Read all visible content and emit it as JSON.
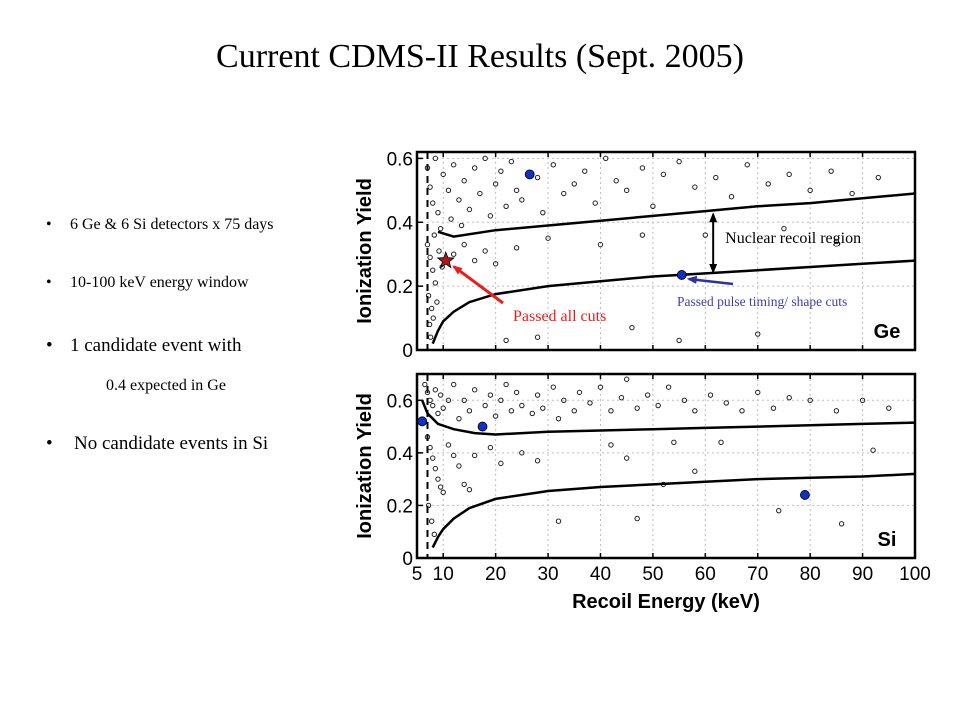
{
  "slide": {
    "title": "Current CDMS-II Results (Sept. 2005)",
    "bullets": [
      {
        "bullet": "•",
        "text": "6 Ge & 6 Si detectors x 75 days",
        "size": "small"
      },
      {
        "bullet": "•",
        "text": "10-100 keV energy window",
        "size": "small"
      },
      {
        "bullet": "•",
        "text": "1 candidate event with",
        "size": "large"
      },
      {
        "bullet": "•",
        "text": "No candidate events in Si",
        "size": "large"
      }
    ],
    "sub_bullet": "0.4 expected in Ge"
  },
  "chart_data": [
    {
      "type": "scatter",
      "panel": "Ge",
      "xlabel": "",
      "ylabel": "Ionization Yield",
      "xlim": [
        5,
        100
      ],
      "ylim": [
        0,
        0.62
      ],
      "yticks": [
        "0",
        "0.2",
        "0.4",
        "0.6"
      ],
      "grid": true,
      "panel_label": "Ge",
      "threshold_x": 7,
      "band_upper": [
        [
          9,
          0.37
        ],
        [
          12,
          0.355
        ],
        [
          20,
          0.375
        ],
        [
          30,
          0.39
        ],
        [
          40,
          0.405
        ],
        [
          50,
          0.42
        ],
        [
          60,
          0.435
        ],
        [
          70,
          0.45
        ],
        [
          80,
          0.46
        ],
        [
          90,
          0.475
        ],
        [
          100,
          0.49
        ]
      ],
      "band_lower": [
        [
          8,
          0.02
        ],
        [
          9,
          0.06
        ],
        [
          10,
          0.09
        ],
        [
          12,
          0.12
        ],
        [
          15,
          0.15
        ],
        [
          20,
          0.175
        ],
        [
          30,
          0.2
        ],
        [
          40,
          0.215
        ],
        [
          50,
          0.23
        ],
        [
          60,
          0.24
        ],
        [
          70,
          0.25
        ],
        [
          80,
          0.26
        ],
        [
          90,
          0.27
        ],
        [
          100,
          0.28
        ]
      ],
      "highlight_points": [
        [
          26.5,
          0.55
        ],
        [
          55.5,
          0.235
        ]
      ],
      "candidate_star": [
        10.5,
        0.28
      ],
      "points": [
        [
          7,
          0.57
        ],
        [
          7.5,
          0.51
        ],
        [
          8,
          0.46
        ],
        [
          8.5,
          0.6
        ],
        [
          9,
          0.43
        ],
        [
          9.5,
          0.38
        ],
        [
          10,
          0.55
        ],
        [
          11,
          0.5
        ],
        [
          11.5,
          0.41
        ],
        [
          12,
          0.58
        ],
        [
          13,
          0.47
        ],
        [
          13.5,
          0.39
        ],
        [
          14,
          0.53
        ],
        [
          15,
          0.44
        ],
        [
          16,
          0.57
        ],
        [
          17,
          0.49
        ],
        [
          18,
          0.6
        ],
        [
          19,
          0.42
        ],
        [
          20,
          0.52
        ],
        [
          21,
          0.56
        ],
        [
          22,
          0.45
        ],
        [
          23,
          0.59
        ],
        [
          24,
          0.5
        ],
        [
          25,
          0.47
        ],
        [
          28,
          0.54
        ],
        [
          29,
          0.43
        ],
        [
          31,
          0.58
        ],
        [
          33,
          0.49
        ],
        [
          35,
          0.52
        ],
        [
          37,
          0.56
        ],
        [
          39,
          0.46
        ],
        [
          41,
          0.6
        ],
        [
          43,
          0.53
        ],
        [
          45,
          0.5
        ],
        [
          48,
          0.57
        ],
        [
          50,
          0.45
        ],
        [
          52,
          0.55
        ],
        [
          55,
          0.59
        ],
        [
          58,
          0.51
        ],
        [
          62,
          0.54
        ],
        [
          65,
          0.48
        ],
        [
          68,
          0.58
        ],
        [
          72,
          0.52
        ],
        [
          76,
          0.55
        ],
        [
          80,
          0.5
        ],
        [
          84,
          0.56
        ],
        [
          88,
          0.49
        ],
        [
          93,
          0.54
        ],
        [
          7,
          0.33
        ],
        [
          7.5,
          0.29
        ],
        [
          8,
          0.25
        ],
        [
          8.5,
          0.21
        ],
        [
          7.2,
          0.17
        ],
        [
          7.8,
          0.13
        ],
        [
          8.3,
          0.36
        ],
        [
          9.2,
          0.31
        ],
        [
          9.8,
          0.26
        ],
        [
          7.4,
          0.08
        ],
        [
          7.6,
          0.04
        ],
        [
          8.8,
          0.15
        ],
        [
          8.1,
          0.1
        ],
        [
          12,
          0.3
        ],
        [
          14,
          0.33
        ],
        [
          16,
          0.28
        ],
        [
          18,
          0.31
        ],
        [
          20,
          0.27
        ],
        [
          24,
          0.32
        ],
        [
          22,
          0.03
        ],
        [
          28,
          0.04
        ],
        [
          30,
          0.35
        ],
        [
          40,
          0.33
        ],
        [
          46,
          0.07
        ],
        [
          48,
          0.36
        ],
        [
          55,
          0.03
        ],
        [
          60,
          0.36
        ],
        [
          70,
          0.05
        ],
        [
          75,
          0.38
        ],
        [
          85,
          0.34
        ]
      ]
    },
    {
      "type": "scatter",
      "panel": "Si",
      "xlabel": "Recoil Energy (keV)",
      "ylabel": "Ionization Yield",
      "xlim": [
        5,
        100
      ],
      "ylim": [
        0,
        0.7
      ],
      "xticks": [
        "5",
        "10",
        "20",
        "30",
        "40",
        "50",
        "60",
        "70",
        "80",
        "90",
        "100"
      ],
      "yticks": [
        "0",
        "0.2",
        "0.4",
        "0.6"
      ],
      "grid": true,
      "panel_label": "Si",
      "threshold_x": 7,
      "band_upper": [
        [
          6,
          0.6
        ],
        [
          7,
          0.55
        ],
        [
          9,
          0.51
        ],
        [
          12,
          0.49
        ],
        [
          16,
          0.475
        ],
        [
          20,
          0.47
        ],
        [
          30,
          0.48
        ],
        [
          40,
          0.485
        ],
        [
          50,
          0.49
        ],
        [
          60,
          0.495
        ],
        [
          70,
          0.5
        ],
        [
          80,
          0.505
        ],
        [
          90,
          0.51
        ],
        [
          100,
          0.515
        ]
      ],
      "band_lower": [
        [
          8,
          0.04
        ],
        [
          9,
          0.08
        ],
        [
          10,
          0.11
        ],
        [
          12,
          0.15
        ],
        [
          15,
          0.19
        ],
        [
          20,
          0.225
        ],
        [
          30,
          0.255
        ],
        [
          40,
          0.27
        ],
        [
          50,
          0.28
        ],
        [
          60,
          0.29
        ],
        [
          70,
          0.3
        ],
        [
          80,
          0.305
        ],
        [
          90,
          0.31
        ],
        [
          100,
          0.32
        ]
      ],
      "highlight_points": [
        [
          6,
          0.52
        ],
        [
          17.5,
          0.5
        ],
        [
          79,
          0.24
        ]
      ],
      "points": [
        [
          6.5,
          0.66
        ],
        [
          7,
          0.63
        ],
        [
          7.5,
          0.6
        ],
        [
          8,
          0.58
        ],
        [
          8.5,
          0.64
        ],
        [
          9,
          0.55
        ],
        [
          9.5,
          0.62
        ],
        [
          10,
          0.57
        ],
        [
          11,
          0.6
        ],
        [
          12,
          0.66
        ],
        [
          13,
          0.53
        ],
        [
          14,
          0.6
        ],
        [
          15,
          0.56
        ],
        [
          16,
          0.64
        ],
        [
          18,
          0.58
        ],
        [
          19,
          0.62
        ],
        [
          20,
          0.54
        ],
        [
          21,
          0.6
        ],
        [
          22,
          0.66
        ],
        [
          23,
          0.56
        ],
        [
          24,
          0.63
        ],
        [
          25,
          0.58
        ],
        [
          27,
          0.55
        ],
        [
          28,
          0.62
        ],
        [
          29,
          0.57
        ],
        [
          31,
          0.65
        ],
        [
          32,
          0.53
        ],
        [
          33,
          0.6
        ],
        [
          35,
          0.56
        ],
        [
          36,
          0.63
        ],
        [
          38,
          0.59
        ],
        [
          40,
          0.65
        ],
        [
          42,
          0.56
        ],
        [
          44,
          0.61
        ],
        [
          45,
          0.68
        ],
        [
          47,
          0.57
        ],
        [
          49,
          0.62
        ],
        [
          51,
          0.58
        ],
        [
          53,
          0.65
        ],
        [
          56,
          0.6
        ],
        [
          58,
          0.56
        ],
        [
          61,
          0.62
        ],
        [
          64,
          0.59
        ],
        [
          67,
          0.56
        ],
        [
          70,
          0.63
        ],
        [
          73,
          0.57
        ],
        [
          76,
          0.61
        ],
        [
          80,
          0.6
        ],
        [
          85,
          0.56
        ],
        [
          90,
          0.6
        ],
        [
          95,
          0.57
        ],
        [
          7,
          0.46
        ],
        [
          7.5,
          0.42
        ],
        [
          8,
          0.38
        ],
        [
          8.5,
          0.34
        ],
        [
          9,
          0.3
        ],
        [
          9.5,
          0.27
        ],
        [
          10,
          0.25
        ],
        [
          11,
          0.43
        ],
        [
          12,
          0.39
        ],
        [
          13,
          0.35
        ],
        [
          14,
          0.28
        ],
        [
          15,
          0.26
        ],
        [
          7.2,
          0.2
        ],
        [
          7.8,
          0.14
        ],
        [
          8.3,
          0.09
        ],
        [
          16,
          0.39
        ],
        [
          19,
          0.42
        ],
        [
          21,
          0.36
        ],
        [
          25,
          0.4
        ],
        [
          28,
          0.37
        ],
        [
          32,
          0.14
        ],
        [
          42,
          0.43
        ],
        [
          45,
          0.38
        ],
        [
          47,
          0.15
        ],
        [
          52,
          0.28
        ],
        [
          54,
          0.44
        ],
        [
          58,
          0.33
        ],
        [
          63,
          0.44
        ],
        [
          74,
          0.18
        ],
        [
          86,
          0.13
        ],
        [
          92,
          0.41
        ]
      ]
    }
  ],
  "annotations": {
    "passed_all_cuts": "Passed all cuts",
    "nuclear_recoil_region": "Nuclear recoil region",
    "passed_pulse_timing": "Passed pulse timing/ shape cuts"
  },
  "colors": {
    "highlight_point": "#1030c8",
    "candidate_star": "#b01818",
    "passed_all_cuts_text": "#ee1c1c",
    "passed_all_cuts_arrow": "#ee1c1c",
    "passed_pulse_text": "#4040b0",
    "passed_pulse_arrow": "#3030a0"
  }
}
